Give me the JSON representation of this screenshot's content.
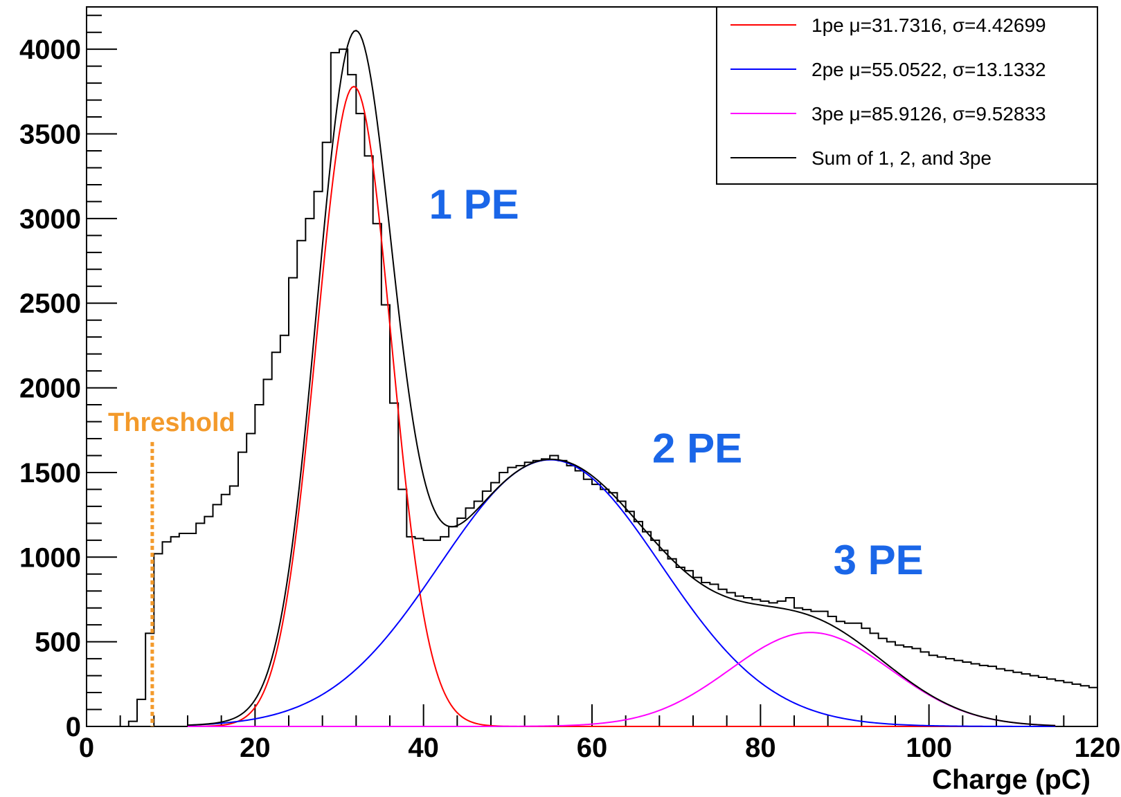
{
  "chart_data": {
    "type": "line",
    "xlabel": "Charge (pC)",
    "ylabel": "",
    "xlim": [
      0,
      120
    ],
    "ylim": [
      0,
      4250
    ],
    "xticks": [
      0,
      20,
      40,
      60,
      80,
      100,
      120
    ],
    "yticks": [
      0,
      500,
      1000,
      1500,
      2000,
      2500,
      3000,
      3500,
      4000
    ],
    "xtick_labels": [
      "0",
      "20",
      "40",
      "60",
      "80",
      "100",
      "120"
    ],
    "ytick_labels": [
      "0",
      "500",
      "1000",
      "1500",
      "2000",
      "2500",
      "3000",
      "3500",
      "4000"
    ],
    "grid": false,
    "legend_position": "top-right",
    "histogram": {
      "bin_edges": [
        5,
        6,
        7,
        8,
        9,
        10,
        11,
        12,
        13,
        14,
        15,
        16,
        17,
        18,
        19,
        20,
        21,
        22,
        23,
        24,
        25,
        26,
        27,
        28,
        29,
        30,
        31,
        32,
        33,
        34,
        35,
        36,
        37,
        38,
        39,
        40,
        41,
        42,
        43,
        44,
        45,
        46,
        47,
        48,
        49,
        50,
        51,
        52,
        53,
        54,
        55,
        56,
        57,
        58,
        59,
        60,
        61,
        62,
        63,
        64,
        65,
        66,
        67,
        68,
        69,
        70,
        71,
        72,
        73,
        74,
        75,
        76,
        77,
        78,
        79,
        80,
        81,
        82,
        83,
        84,
        85,
        86,
        87,
        88,
        89,
        90,
        91,
        92,
        93,
        94,
        95,
        96,
        97,
        98,
        99,
        100,
        101,
        102,
        103,
        104,
        105,
        106,
        107,
        108,
        109,
        110,
        111,
        112,
        113,
        114,
        115,
        116,
        117,
        118,
        119,
        120
      ],
      "counts": [
        30,
        160,
        550,
        1020,
        1090,
        1120,
        1140,
        1140,
        1200,
        1240,
        1310,
        1370,
        1420,
        1620,
        1730,
        1900,
        2050,
        2210,
        2310,
        2650,
        2870,
        3000,
        3160,
        3450,
        3980,
        4000,
        3850,
        3620,
        3370,
        2970,
        2490,
        1910,
        1400,
        1120,
        1110,
        1100,
        1100,
        1120,
        1180,
        1230,
        1290,
        1330,
        1390,
        1440,
        1500,
        1530,
        1540,
        1560,
        1570,
        1580,
        1600,
        1570,
        1540,
        1510,
        1460,
        1430,
        1400,
        1380,
        1330,
        1270,
        1210,
        1150,
        1100,
        1040,
        990,
        940,
        920,
        880,
        850,
        840,
        810,
        790,
        770,
        760,
        750,
        740,
        730,
        740,
        760,
        700,
        690,
        680,
        680,
        650,
        620,
        610,
        610,
        580,
        550,
        520,
        500,
        480,
        470,
        460,
        440,
        420,
        410,
        400,
        390,
        380,
        370,
        360,
        355,
        340,
        330,
        320,
        310,
        300,
        290,
        280,
        270,
        260,
        250,
        240,
        230
      ]
    },
    "series": [
      {
        "name": "1pe μ=31.7316, σ=4.42699",
        "color": "#ff0000",
        "mu": 31.7316,
        "sigma": 4.42699,
        "amplitude": 3780
      },
      {
        "name": "2pe μ=55.0522, σ=13.1332",
        "color": "#0000ff",
        "mu": 55.0522,
        "sigma": 13.1332,
        "amplitude": 1575
      },
      {
        "name": "3pe μ=85.9126, σ=9.52833",
        "color": "#ff00ff",
        "mu": 85.9126,
        "sigma": 9.52833,
        "amplitude": 555
      },
      {
        "name": "Sum of 1, 2, and 3pe",
        "color": "#000000"
      }
    ],
    "fit_range": [
      12,
      115
    ],
    "annotations": [
      {
        "text": "1 PE",
        "x": 46,
        "y": 3000,
        "color": "#1a66e8"
      },
      {
        "text": "2 PE",
        "x": 72.5,
        "y": 1560,
        "color": "#1a66e8"
      },
      {
        "text": "3 PE",
        "x": 94,
        "y": 900,
        "color": "#1a66e8"
      }
    ],
    "threshold": {
      "label": "Threshold",
      "x": 7.8,
      "top": 1680,
      "color": "#f39a2b"
    }
  }
}
